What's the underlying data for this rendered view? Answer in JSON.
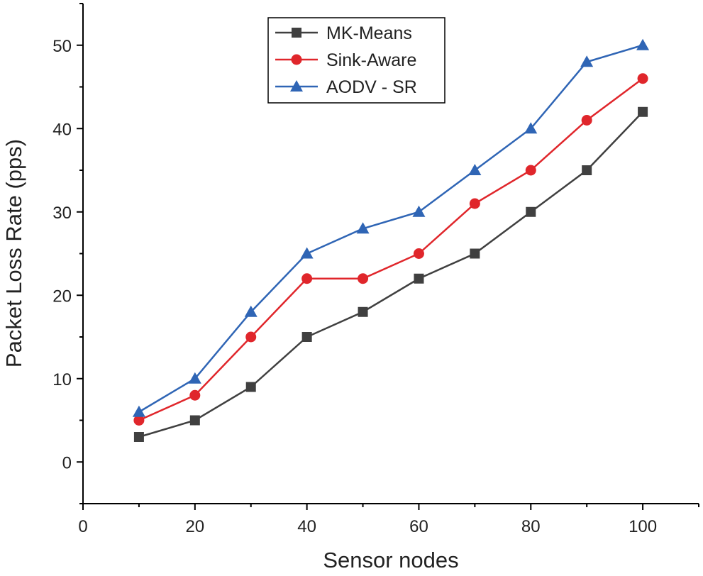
{
  "chart_data": {
    "type": "line",
    "title": "",
    "xlabel": "Sensor nodes",
    "ylabel": "Packet Loss Rate (pps)",
    "xlim": [
      0,
      110
    ],
    "ylim": [
      -5,
      55
    ],
    "xticks": [
      0,
      20,
      40,
      60,
      80,
      100
    ],
    "yticks": [
      0,
      10,
      20,
      30,
      40,
      50
    ],
    "grid": false,
    "legend_placement": "top-center",
    "x": [
      10,
      20,
      30,
      40,
      50,
      60,
      70,
      80,
      90,
      100
    ],
    "series": [
      {
        "name": "MK-Means",
        "color": "#404040",
        "marker": "square",
        "values": [
          3,
          5,
          9,
          15,
          18,
          22,
          25,
          30,
          35,
          42
        ]
      },
      {
        "name": "Sink-Aware",
        "color": "#e0262b",
        "marker": "circle",
        "values": [
          5,
          8,
          15,
          22,
          22,
          25,
          31,
          35,
          41,
          46
        ]
      },
      {
        "name": "AODV - SR",
        "color": "#2f65b5",
        "marker": "triangle",
        "values": [
          6,
          10,
          18,
          25,
          28,
          30,
          35,
          40,
          48,
          50
        ]
      }
    ]
  }
}
